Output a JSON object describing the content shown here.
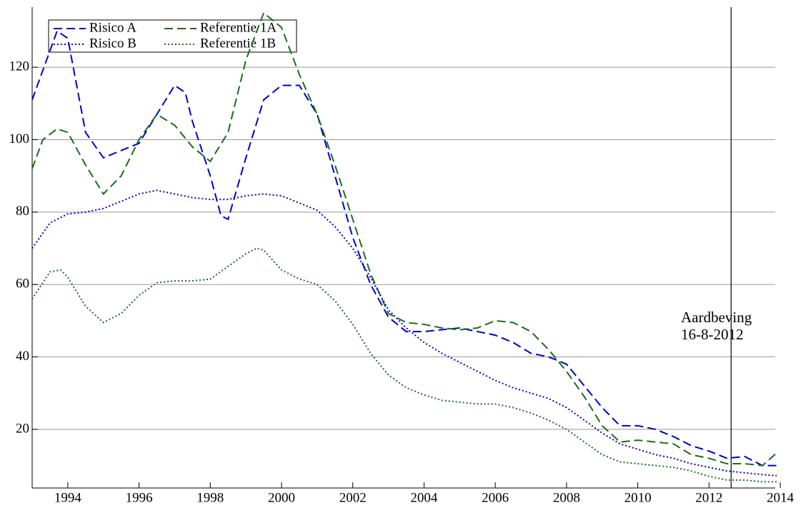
{
  "chart_data": {
    "type": "line",
    "xlim": [
      1993,
      2014
    ],
    "xticks": [
      1994,
      1996,
      1998,
      2000,
      2002,
      2004,
      2006,
      2008,
      2010,
      2012,
      2014
    ],
    "ylim": [
      3.8,
      136.6
    ],
    "yticks": [
      20,
      40,
      60,
      80,
      100,
      120
    ],
    "grid": true,
    "legend": "upper left",
    "vline": 2012.62,
    "annotation": [
      "Aardbeving",
      "16-8-2012"
    ],
    "series": [
      {
        "name": "Risico A",
        "color": "#0000cc",
        "dash": "dashed",
        "x": [
          1993.0,
          1993.7,
          1994.0,
          1994.5,
          1995.0,
          1995.5,
          1996.0,
          1996.5,
          1997.0,
          1997.3,
          1997.5,
          1998.0,
          1998.3,
          1998.5,
          1999.0,
          1999.5,
          2000.0,
          2000.5,
          2001.0,
          2001.5,
          2002.0,
          2002.5,
          2003.0,
          2003.5,
          2004.0,
          2004.5,
          2005.0,
          2005.5,
          2006.0,
          2006.5,
          2007.0,
          2007.5,
          2008.0,
          2008.5,
          2009.0,
          2009.5,
          2010.0,
          2010.5,
          2011.0,
          2011.5,
          2012.0,
          2012.5,
          2013.0,
          2013.5,
          2013.9
        ],
        "values": [
          111,
          130,
          128,
          102,
          95,
          97,
          99,
          107,
          115,
          113,
          105,
          90,
          79,
          78,
          95,
          111,
          115,
          115,
          107,
          90,
          73,
          60,
          51,
          47,
          47,
          47.5,
          48,
          47,
          46,
          44,
          41,
          40,
          38,
          32,
          26,
          21,
          21,
          20,
          18,
          15.5,
          14,
          12,
          12.5,
          10,
          10
        ]
      },
      {
        "name": "Referentie 1A",
        "color": "#1a6e1a",
        "dash": "dashed",
        "x": [
          1993.0,
          1993.3,
          1993.7,
          1994.0,
          1994.5,
          1995.0,
          1995.5,
          1996.0,
          1996.5,
          1997.0,
          1997.5,
          1998.0,
          1998.5,
          1999.0,
          1999.5,
          2000.0,
          2000.5,
          2001.0,
          2001.5,
          2002.0,
          2002.5,
          2003.0,
          2003.5,
          2004.0,
          2004.5,
          2005.0,
          2005.5,
          2006.0,
          2006.5,
          2007.0,
          2007.5,
          2008.0,
          2008.5,
          2009.0,
          2009.5,
          2010.0,
          2010.5,
          2011.0,
          2011.5,
          2012.0,
          2012.5,
          2013.0,
          2013.5,
          2013.9
        ],
        "values": [
          92,
          100,
          103,
          102,
          93,
          85,
          90,
          100,
          107,
          104,
          98,
          94,
          102,
          122,
          135,
          131,
          118,
          107,
          93,
          78,
          63,
          52,
          49.5,
          49,
          48,
          47.5,
          48,
          50,
          49.5,
          47,
          42,
          36,
          29,
          21,
          16.5,
          17,
          16.5,
          16,
          13,
          12,
          10.5,
          10.5,
          10,
          13.5
        ]
      },
      {
        "name": "Risico B",
        "color": "#0000cc",
        "dash": "dotted",
        "x": [
          1993.0,
          1993.5,
          1994.0,
          1994.5,
          1995.0,
          1995.5,
          1996.0,
          1996.5,
          1997.0,
          1997.5,
          1998.0,
          1998.5,
          1999.0,
          1999.5,
          2000.0,
          2000.5,
          2001.0,
          2001.5,
          2002.0,
          2002.5,
          2003.0,
          2003.5,
          2004.0,
          2004.5,
          2005.0,
          2005.5,
          2006.0,
          2006.5,
          2007.0,
          2007.5,
          2008.0,
          2008.5,
          2009.0,
          2009.5,
          2010.0,
          2010.5,
          2011.0,
          2011.5,
          2012.0,
          2012.5,
          2013.0,
          2013.5,
          2013.9
        ],
        "values": [
          70,
          77,
          79.5,
          80,
          81,
          83,
          85,
          86,
          85,
          84,
          83.5,
          83.5,
          84.5,
          85,
          84.5,
          82.5,
          80.5,
          76,
          70,
          62,
          53,
          48,
          44,
          41,
          38.5,
          36,
          33.5,
          31.5,
          30,
          28.5,
          26,
          22.5,
          19,
          16,
          14.5,
          13,
          12,
          10.5,
          9.5,
          8.5,
          8,
          7.5,
          7.2
        ]
      },
      {
        "name": "Referentie 1B",
        "color": "#1a6e1a",
        "dash": "dotted",
        "x": [
          1993.0,
          1993.5,
          1993.8,
          1994.0,
          1994.5,
          1995.0,
          1995.5,
          1996.0,
          1996.5,
          1997.0,
          1997.5,
          1998.0,
          1998.5,
          1999.0,
          1999.3,
          1999.5,
          2000.0,
          2000.5,
          2001.0,
          2001.5,
          2002.0,
          2002.5,
          2003.0,
          2003.5,
          2004.0,
          2004.5,
          2005.0,
          2005.5,
          2006.0,
          2006.5,
          2007.0,
          2007.5,
          2008.0,
          2008.5,
          2009.0,
          2009.5,
          2010.0,
          2010.5,
          2011.0,
          2011.5,
          2012.0,
          2012.5,
          2013.0,
          2013.5,
          2013.9
        ],
        "values": [
          56,
          63.5,
          64,
          62,
          54,
          49.5,
          52,
          57,
          60.5,
          61,
          61,
          61.5,
          65,
          68.5,
          70,
          69.5,
          64,
          61.5,
          60,
          55.5,
          49,
          41,
          35,
          31.5,
          29.5,
          28,
          27.5,
          27,
          27,
          26,
          24.5,
          22.5,
          20,
          16.5,
          13,
          11,
          10.5,
          10,
          9.5,
          8.5,
          7,
          6,
          6,
          5.5,
          5.5
        ]
      }
    ]
  }
}
